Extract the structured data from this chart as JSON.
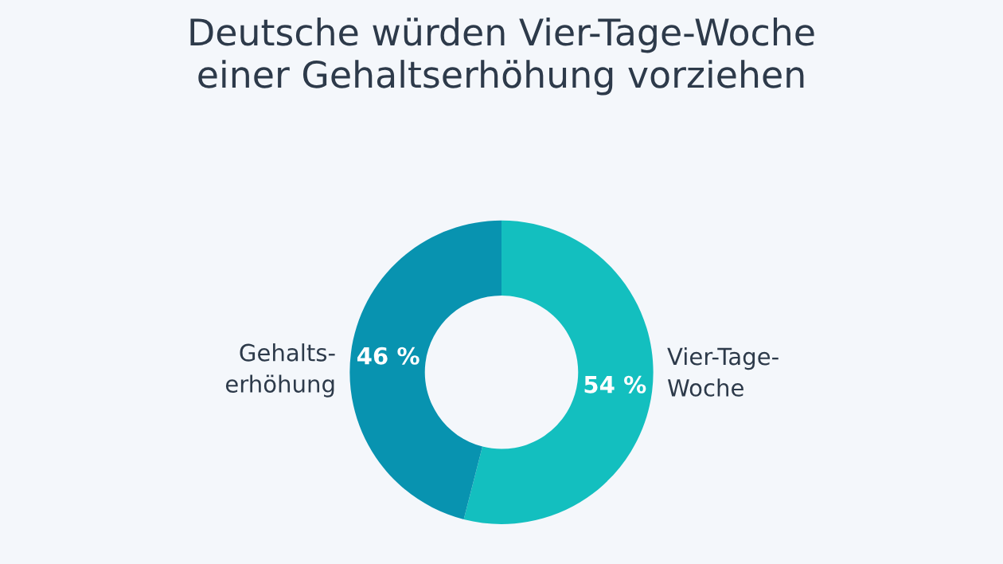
{
  "chart_data": {
    "type": "donut",
    "title": "Deutsche würden Vier-Tage-Woche\neiner Gehaltserhöhung vorziehen",
    "categories": [
      "Vier-Tage-\nWoche",
      "Gehalts-\nerhöhung"
    ],
    "values": [
      54,
      46
    ],
    "colors": [
      "#13bfbf",
      "#0893b0"
    ],
    "value_labels": [
      "54 %",
      "46 %"
    ]
  }
}
